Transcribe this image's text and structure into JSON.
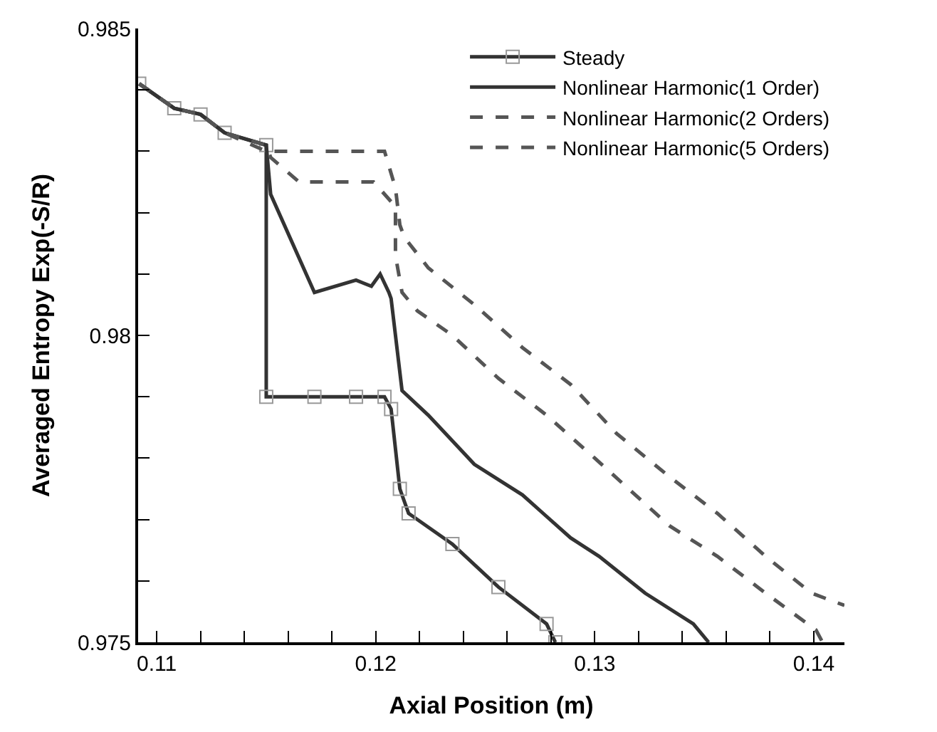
{
  "chart_data": {
    "type": "line",
    "xlabel": "Axial Position (m)",
    "ylabel": "Averaged Entropy Exp(-S/R)",
    "xlim": [
      0.10915,
      0.1414
    ],
    "ylim": [
      0.975,
      0.985
    ],
    "xticks": [
      {
        "value": 0.11,
        "label": "0.11"
      },
      {
        "value": 0.112,
        "label": null
      },
      {
        "value": 0.114,
        "label": null
      },
      {
        "value": 0.116,
        "label": null
      },
      {
        "value": 0.118,
        "label": null
      },
      {
        "value": 0.12,
        "label": "0.12"
      },
      {
        "value": 0.122,
        "label": null
      },
      {
        "value": 0.124,
        "label": null
      },
      {
        "value": 0.126,
        "label": null
      },
      {
        "value": 0.128,
        "label": null
      },
      {
        "value": 0.13,
        "label": "0.13"
      },
      {
        "value": 0.132,
        "label": null
      },
      {
        "value": 0.134,
        "label": null
      },
      {
        "value": 0.136,
        "label": null
      },
      {
        "value": 0.138,
        "label": null
      },
      {
        "value": 0.14,
        "label": "0.14"
      }
    ],
    "yticks": [
      0.975,
      {
        "value": 0.976,
        "label": null
      },
      {
        "value": 0.977,
        "label": null
      },
      {
        "value": 0.978,
        "label": null
      },
      {
        "value": 0.979,
        "label": null
      },
      0.98,
      {
        "value": 0.981,
        "label": null
      },
      {
        "value": 0.982,
        "label": null
      },
      {
        "value": 0.983,
        "label": null
      },
      {
        "value": 0.984,
        "label": null
      },
      0.985
    ],
    "legend": "top right",
    "series": [
      {
        "name": "Steady",
        "color": "#333333",
        "marker": "square",
        "line_style": "solid",
        "x": [
          0.1092,
          0.1108,
          0.112,
          0.1131,
          0.115,
          0.115,
          0.1172,
          0.1191,
          0.1204,
          0.1207,
          0.1211,
          0.1215,
          0.1235,
          0.1256,
          0.1278,
          0.1282
        ],
        "values": [
          0.9841,
          0.9837,
          0.9836,
          0.9833,
          0.9831,
          0.979,
          0.979,
          0.979,
          0.979,
          0.9788,
          0.9775,
          0.9771,
          0.9766,
          0.9759,
          0.9753,
          0.975
        ]
      },
      {
        "name": "Nonlinear Harmonic(1 Order)",
        "color": "#333333",
        "marker": "none",
        "line_style": "solid",
        "x": [
          0.1092,
          0.1108,
          0.112,
          0.1131,
          0.115,
          0.1152,
          0.1172,
          0.1191,
          0.1198,
          0.1202,
          0.1206,
          0.1207,
          0.1212,
          0.1224,
          0.1245,
          0.1267,
          0.1289,
          0.1302,
          0.1323,
          0.1345,
          0.1352
        ],
        "values": [
          0.9841,
          0.9837,
          0.9836,
          0.9833,
          0.9831,
          0.9823,
          0.9807,
          0.9809,
          0.9808,
          0.981,
          0.9807,
          0.9806,
          0.9791,
          0.9787,
          0.9779,
          0.9774,
          0.9767,
          0.9764,
          0.9758,
          0.9753,
          0.975
        ]
      },
      {
        "name": "Nonlinear Harmonic(2 Orders)",
        "color": "#555555",
        "marker": "none",
        "line_style": "dashed",
        "x": [
          0.1092,
          0.1108,
          0.112,
          0.1131,
          0.115,
          0.1152,
          0.1165,
          0.1199,
          0.1209,
          0.1209,
          0.1212,
          0.1219,
          0.1235,
          0.1256,
          0.1278,
          0.13,
          0.1334,
          0.1356,
          0.1378,
          0.1401,
          0.1404
        ],
        "values": [
          0.9841,
          0.9837,
          0.9836,
          0.9833,
          0.9831,
          0.9829,
          0.9825,
          0.9825,
          0.9821,
          0.9813,
          0.9807,
          0.9804,
          0.98,
          0.9793,
          0.9787,
          0.978,
          0.9769,
          0.9764,
          0.9758,
          0.9752,
          0.975
        ]
      },
      {
        "name": "Nonlinear Harmonic(5 Orders)",
        "color": "#555555",
        "marker": "none",
        "line_style": "dashed",
        "x": [
          0.1092,
          0.1108,
          0.112,
          0.1131,
          0.115,
          0.1204,
          0.1209,
          0.1211,
          0.1213,
          0.1224,
          0.1245,
          0.1267,
          0.1289,
          0.131,
          0.1334,
          0.1356,
          0.1378,
          0.1399,
          0.1414
        ],
        "values": [
          0.9841,
          0.9837,
          0.9836,
          0.9833,
          0.983,
          0.983,
          0.9824,
          0.9818,
          0.9816,
          0.9811,
          0.9805,
          0.9798,
          0.9792,
          0.9784,
          0.9777,
          0.9771,
          0.9764,
          0.9758,
          0.9756
        ]
      }
    ]
  }
}
